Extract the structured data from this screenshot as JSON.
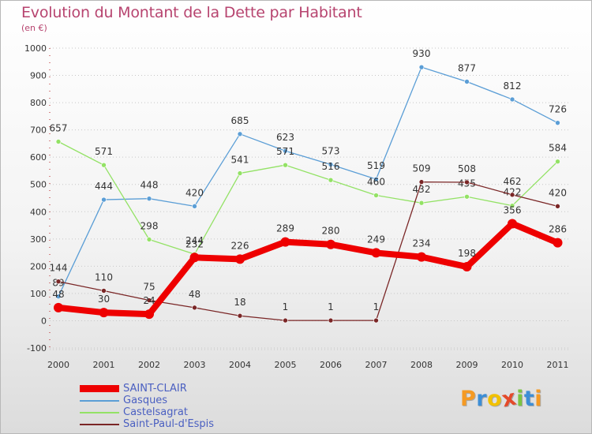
{
  "title": "Evolution du Montant de la Dette par Habitant",
  "unit": "(en €)",
  "chart_data": {
    "type": "line",
    "title": "Evolution du Montant de la Dette par Habitant",
    "ylabel": "(en €)",
    "xlabel": "",
    "x": [
      "2000",
      "2001",
      "2002",
      "2003",
      "2004",
      "2005",
      "2006",
      "2007",
      "2008",
      "2009",
      "2010",
      "2011"
    ],
    "y_ticks": [
      "1000",
      "900",
      "800",
      "700",
      "600",
      "500",
      "400",
      "300",
      "200",
      "100",
      "0",
      "-100"
    ],
    "ylim": [
      -100,
      1000
    ],
    "grid": "dotted horizontal",
    "legend_position": "bottom-left",
    "series": [
      {
        "name": "SAINT-CLAIR",
        "color": "#ee0000",
        "values": [
          48,
          30,
          24,
          232,
          226,
          289,
          280,
          249,
          234,
          198,
          356,
          286
        ],
        "labels": [
          "48",
          "30",
          "24",
          "232",
          "226",
          "289",
          "280",
          "249",
          "234",
          "198",
          "356",
          "286"
        ]
      },
      {
        "name": "Gasques",
        "color": "#5b9ed6",
        "values": [
          89,
          444,
          448,
          420,
          685,
          623,
          573,
          519,
          930,
          877,
          812,
          726
        ],
        "labels": [
          "89",
          "444",
          "448",
          "420",
          "685",
          "623",
          "573",
          "519",
          "930",
          "877",
          "812",
          "726"
        ]
      },
      {
        "name": "Castelsagrat",
        "color": "#93e265",
        "values": [
          657,
          571,
          298,
          244,
          541,
          571,
          516,
          460,
          432,
          455,
          422,
          584
        ],
        "labels": [
          "657",
          "571",
          "298",
          "244",
          "541",
          "571",
          "516",
          "460",
          "432",
          "455",
          "422",
          "584"
        ]
      },
      {
        "name": "Saint-Paul-d'Espis",
        "color": "#7a2626",
        "values": [
          144,
          110,
          75,
          48,
          18,
          1,
          1,
          1,
          509,
          508,
          462,
          420
        ],
        "labels": [
          "144",
          "110",
          "75",
          "48",
          "18",
          "1",
          "1",
          "1",
          "509",
          "508",
          "462",
          "420"
        ]
      }
    ]
  },
  "logo": {
    "text": "Proxiti",
    "letters": [
      "P",
      "r",
      "o",
      "x",
      "i",
      "t",
      "i"
    ],
    "colors": [
      "#f59a23",
      "#3d8ed6",
      "#f2c100",
      "#e44a2a",
      "#7cc442",
      "#3d8ed6",
      "#f59a23"
    ]
  }
}
